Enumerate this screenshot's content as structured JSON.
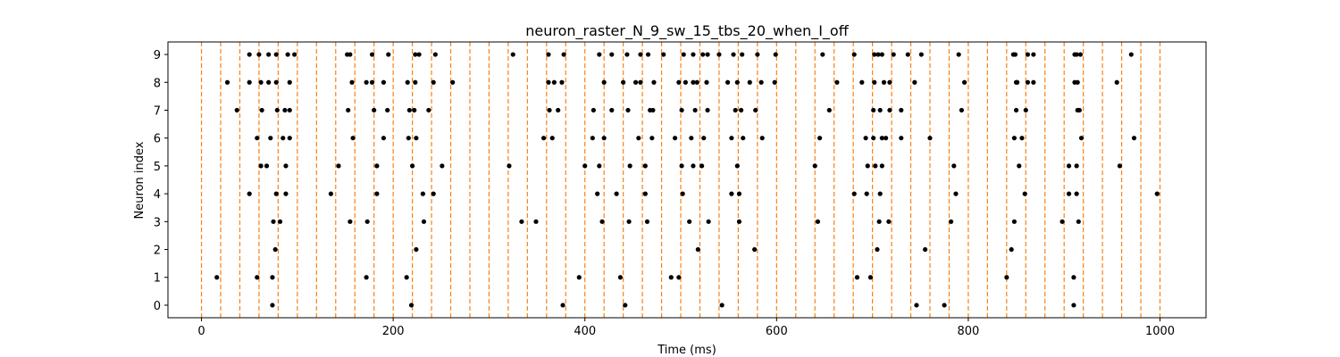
{
  "chart_data": {
    "type": "scatter",
    "title": "neuron_raster_N_9_sw_15_tbs_20_when_I_off",
    "xlabel": "Time (ms)",
    "ylabel": "Neuron index",
    "xlim": [
      -35,
      1048
    ],
    "ylim": [
      -0.45,
      9.45
    ],
    "xticks": [
      0,
      200,
      400,
      600,
      800,
      1000
    ],
    "yticks": [
      0,
      1,
      2,
      3,
      4,
      5,
      6,
      7,
      8,
      9
    ],
    "grid": false,
    "legend": "none",
    "marker_color": "#000000",
    "vline_color": "#ff7f0e",
    "vline_style": "dashed",
    "vlines": [
      0,
      20,
      40,
      60,
      80,
      100,
      120,
      140,
      160,
      180,
      200,
      220,
      240,
      260,
      280,
      300,
      320,
      340,
      360,
      380,
      400,
      420,
      440,
      460,
      480,
      500,
      520,
      540,
      560,
      580,
      600,
      620,
      640,
      660,
      680,
      700,
      720,
      740,
      760,
      780,
      800,
      820,
      840,
      860,
      880,
      900,
      920,
      940,
      960,
      980,
      1000
    ],
    "spikes": [
      {
        "neuron": 9,
        "times": [
          50,
          60,
          70,
          78,
          90,
          97,
          152,
          155,
          178,
          195,
          223,
          227,
          244,
          325,
          362,
          378,
          415,
          428,
          444,
          458,
          466,
          482,
          503,
          513,
          523,
          528,
          540,
          555,
          564,
          580,
          599,
          648,
          681,
          702,
          706,
          710,
          722,
          737,
          751,
          790,
          847,
          849,
          862,
          868,
          911,
          913,
          917,
          970
        ]
      },
      {
        "neuron": 8,
        "times": [
          27,
          50,
          62,
          70,
          78,
          92,
          157,
          172,
          178,
          190,
          215,
          223,
          242,
          262,
          362,
          368,
          376,
          420,
          440,
          453,
          458,
          472,
          498,
          505,
          513,
          517,
          527,
          549,
          559,
          572,
          584,
          598,
          663,
          689,
          702,
          712,
          718,
          744,
          796,
          850,
          851,
          862,
          868,
          911,
          914,
          955
        ]
      },
      {
        "neuron": 7,
        "times": [
          37,
          63,
          79,
          87,
          92,
          153,
          180,
          194,
          217,
          222,
          237,
          363,
          372,
          409,
          428,
          445,
          468,
          471,
          501,
          515,
          528,
          557,
          563,
          578,
          655,
          701,
          708,
          718,
          730,
          793,
          850,
          860,
          914,
          916
        ]
      },
      {
        "neuron": 6,
        "times": [
          58,
          72,
          85,
          92,
          158,
          190,
          216,
          224,
          357,
          366,
          408,
          420,
          456,
          470,
          494,
          511,
          524,
          553,
          565,
          585,
          645,
          693,
          701,
          710,
          714,
          730,
          760,
          848,
          856,
          918,
          973
        ]
      },
      {
        "neuron": 5,
        "times": [
          62,
          68,
          88,
          143,
          183,
          220,
          251,
          321,
          400,
          415,
          447,
          463,
          501,
          513,
          522,
          559,
          640,
          695,
          703,
          710,
          785,
          853,
          905,
          913,
          958
        ]
      },
      {
        "neuron": 4,
        "times": [
          50,
          78,
          88,
          135,
          183,
          231,
          242,
          413,
          433,
          463,
          502,
          553,
          561,
          681,
          694,
          708,
          787,
          859,
          905,
          913,
          997
        ]
      },
      {
        "neuron": 3,
        "times": [
          75,
          82,
          155,
          173,
          232,
          334,
          349,
          418,
          446,
          465,
          509,
          529,
          561,
          643,
          707,
          717,
          782,
          848,
          898,
          915
        ]
      },
      {
        "neuron": 2,
        "times": [
          77,
          224,
          518,
          577,
          705,
          755,
          845
        ]
      },
      {
        "neuron": 1,
        "times": [
          16,
          58,
          74,
          172,
          214,
          394,
          437,
          490,
          498,
          684,
          698,
          840,
          910
        ]
      },
      {
        "neuron": 0,
        "times": [
          74,
          219,
          377,
          442,
          543,
          746,
          775,
          910
        ]
      }
    ]
  }
}
